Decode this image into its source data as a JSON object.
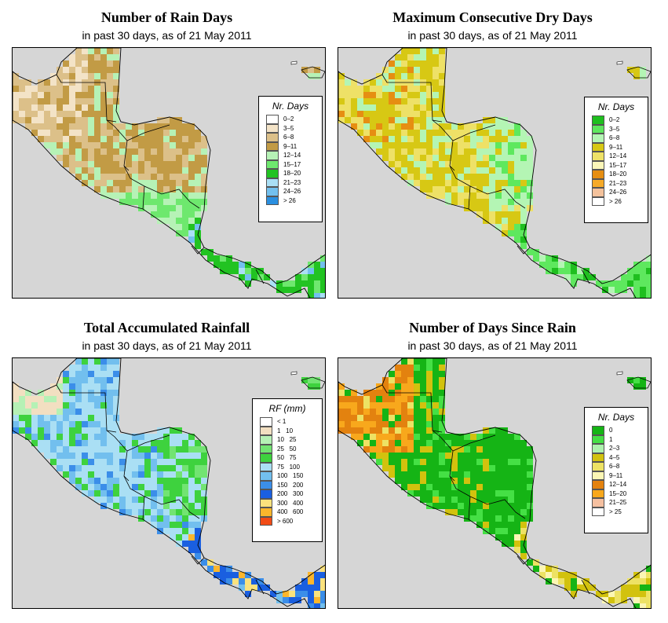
{
  "panels": [
    {
      "title": "Number of Rain Days",
      "subtitle": "in past 30 days, as of  21 May 2011",
      "legend": {
        "title": "Nr. Days",
        "entries": [
          {
            "label": "0–2",
            "color": "#ffffff"
          },
          {
            "label": "3–5",
            "color": "#f3e3c7"
          },
          {
            "label": "6–8",
            "color": "#dcc089"
          },
          {
            "label": "9–11",
            "color": "#c29b45"
          },
          {
            "label": "12–14",
            "color": "#b6f2b6"
          },
          {
            "label": "15–17",
            "color": "#6ee86e"
          },
          {
            "label": "18–20",
            "color": "#22c322"
          },
          {
            "label": "21–23",
            "color": "#aadff5"
          },
          {
            "label": "24–26",
            "color": "#73c0ee"
          },
          {
            "label": "> 26",
            "color": "#2a8fe0"
          }
        ]
      }
    },
    {
      "title": "Maximum Consecutive Dry Days",
      "subtitle": "in past 30 days, as of  21 May 2011",
      "legend": {
        "title": "Nr. Days",
        "entries": [
          {
            "label": "0–2",
            "color": "#1fbf1f"
          },
          {
            "label": "3–5",
            "color": "#5ee85e"
          },
          {
            "label": "6–8",
            "color": "#b4f5b4"
          },
          {
            "label": "9–11",
            "color": "#d7c814"
          },
          {
            "label": "12–14",
            "color": "#eee167"
          },
          {
            "label": "15–17",
            "color": "#fbf6b8"
          },
          {
            "label": "18–20",
            "color": "#e68e12"
          },
          {
            "label": "21–23",
            "color": "#f6aa28"
          },
          {
            "label": "24–26",
            "color": "#f4c29c"
          },
          {
            "label": "> 26",
            "color": "#ffffff"
          }
        ]
      }
    },
    {
      "title": "Total Accumulated Rainfall",
      "subtitle": "in past 30 days, as of  21 May 2011",
      "legend": {
        "title": "RF (mm)",
        "entries": [
          {
            "label": "< 1",
            "color": "#ffffff"
          },
          {
            "label": "1   10",
            "color": "#f2dfc1"
          },
          {
            "label": "10   25",
            "color": "#b5f1b5"
          },
          {
            "label": "25   50",
            "color": "#72e472"
          },
          {
            "label": "50   75",
            "color": "#3ed23e"
          },
          {
            "label": "75   100",
            "color": "#aadff4"
          },
          {
            "label": "100   150",
            "color": "#72bfee"
          },
          {
            "label": "150   200",
            "color": "#3b8ee9"
          },
          {
            "label": "200   300",
            "color": "#1a5fe0"
          },
          {
            "label": "300   400",
            "color": "#fbe27d"
          },
          {
            "label": "400   600",
            "color": "#fbb62c"
          },
          {
            "label": "> 600",
            "color": "#f14b16"
          }
        ]
      }
    },
    {
      "title": "Number of Days Since Rain",
      "subtitle": "in past 30 days, as of  21 May 2011",
      "legend": {
        "title": "Nr. Days",
        "entries": [
          {
            "label": "0",
            "color": "#15b415"
          },
          {
            "label": "1",
            "color": "#45e045"
          },
          {
            "label": "2–3",
            "color": "#aef2ae"
          },
          {
            "label": "4–5",
            "color": "#d2c20e"
          },
          {
            "label": "6–8",
            "color": "#ede264"
          },
          {
            "label": "9–11",
            "color": "#fbf6b4"
          },
          {
            "label": "12–14",
            "color": "#e3820f"
          },
          {
            "label": "15–20",
            "color": "#f8a81c"
          },
          {
            "label": "21–25",
            "color": "#f5c0a0"
          },
          {
            "label": "> 25",
            "color": "#ffffff"
          }
        ]
      }
    }
  ],
  "colors": {
    "background_sea": "#d6d6d6",
    "border_lines": "#000000"
  }
}
